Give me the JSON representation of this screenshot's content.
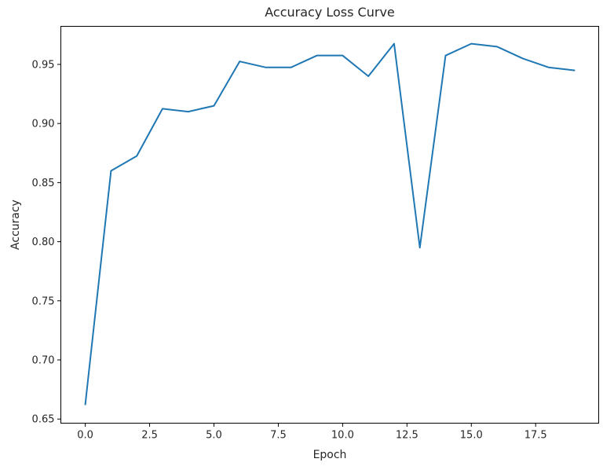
{
  "chart_data": {
    "type": "line",
    "title": "Accuracy Loss Curve",
    "xlabel": "Epoch",
    "ylabel": "Accuracy",
    "xlim": [
      -0.95,
      19.95
    ],
    "ylim": [
      0.6465,
      0.9822
    ],
    "x_ticks": [
      0.0,
      2.5,
      5.0,
      7.5,
      10.0,
      12.5,
      15.0,
      17.5
    ],
    "x_tick_labels": [
      "0.0",
      "2.5",
      "5.0",
      "7.5",
      "10.0",
      "12.5",
      "15.0",
      "17.5"
    ],
    "y_ticks": [
      0.65,
      0.7,
      0.75,
      0.8,
      0.85,
      0.9,
      0.95
    ],
    "y_tick_labels": [
      "0.65",
      "0.70",
      "0.75",
      "0.80",
      "0.85",
      "0.90",
      "0.95"
    ],
    "grid": false,
    "series": [
      {
        "color": "#1f77b4",
        "x": [
          0,
          1,
          2,
          3,
          4,
          5,
          6,
          7,
          8,
          9,
          10,
          11,
          12,
          13,
          14,
          15,
          16,
          17,
          18,
          19
        ],
        "values": [
          0.6625,
          0.86,
          0.8725,
          0.9125,
          0.91,
          0.915,
          0.9525,
          0.9475,
          0.9475,
          0.9575,
          0.9575,
          0.94,
          0.9675,
          0.795,
          0.9575,
          0.9675,
          0.965,
          0.955,
          0.9475,
          0.945
        ]
      }
    ]
  }
}
